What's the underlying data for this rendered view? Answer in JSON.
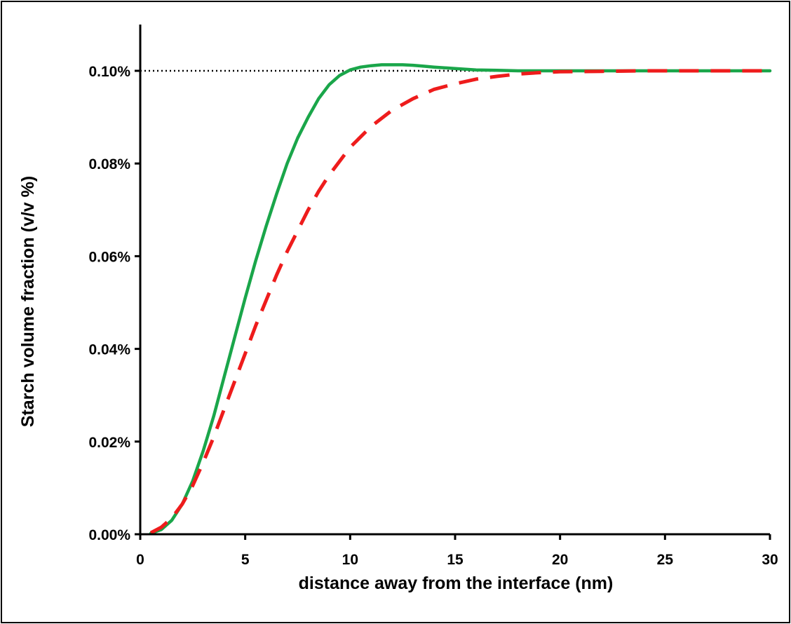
{
  "chart_data": {
    "type": "line",
    "title": "",
    "xlabel": "distance away from the interface (nm)",
    "ylabel": "Starch volume fraction (v/v %)",
    "xlim": [
      0,
      30
    ],
    "ylim": [
      0,
      0.11
    ],
    "x_ticks": [
      0,
      5,
      10,
      15,
      20,
      25,
      30
    ],
    "x_tick_labels": [
      "0",
      "5",
      "10",
      "15",
      "20",
      "25",
      "30"
    ],
    "y_ticks": [
      0,
      0.02,
      0.04,
      0.06,
      0.08,
      0.1
    ],
    "y_tick_labels": [
      "0.00%",
      "0.02%",
      "0.04%",
      "0.06%",
      "0.08%",
      "0.10%"
    ],
    "grid": false,
    "legend": "none",
    "reference_line": {
      "y": 0.1,
      "style": "dotted",
      "color": "#000000"
    },
    "series": [
      {
        "style": "solid",
        "color": "#1aa64a",
        "x": [
          0.5,
          1,
          1.5,
          2,
          2.5,
          3,
          3.5,
          4,
          4.5,
          5,
          5.5,
          6,
          6.5,
          7,
          7.5,
          8,
          8.5,
          9,
          9.5,
          10,
          10.5,
          11,
          11.5,
          12,
          12.5,
          13,
          13.5,
          14,
          15,
          16,
          17,
          18,
          20,
          22,
          25,
          28,
          30
        ],
        "y": [
          0.0002,
          0.001,
          0.003,
          0.0065,
          0.0115,
          0.018,
          0.0255,
          0.034,
          0.0425,
          0.051,
          0.059,
          0.0665,
          0.0735,
          0.08,
          0.0855,
          0.09,
          0.094,
          0.097,
          0.099,
          0.1002,
          0.1008,
          0.1011,
          0.1013,
          0.1013,
          0.1013,
          0.1012,
          0.101,
          0.1008,
          0.1005,
          0.1002,
          0.1001,
          0.1,
          0.1,
          0.1,
          0.1,
          0.1,
          0.1
        ]
      },
      {
        "style": "dashed",
        "color": "#ee1c1c",
        "x": [
          0.5,
          1,
          1.5,
          2,
          2.5,
          3,
          3.5,
          4,
          4.5,
          5,
          5.5,
          6,
          6.5,
          7,
          7.5,
          8,
          8.5,
          9,
          9.5,
          10,
          11,
          12,
          13,
          14,
          15,
          16,
          17,
          18,
          19,
          20,
          22,
          24,
          26,
          28,
          30
        ],
        "y": [
          0.0003,
          0.0015,
          0.0035,
          0.0065,
          0.0105,
          0.0155,
          0.021,
          0.027,
          0.033,
          0.039,
          0.045,
          0.0505,
          0.056,
          0.061,
          0.0655,
          0.07,
          0.074,
          0.0775,
          0.0805,
          0.0835,
          0.088,
          0.0915,
          0.094,
          0.096,
          0.0972,
          0.0982,
          0.0988,
          0.0993,
          0.0996,
          0.0998,
          0.0999,
          0.1,
          0.1,
          0.1,
          0.1
        ]
      }
    ]
  }
}
